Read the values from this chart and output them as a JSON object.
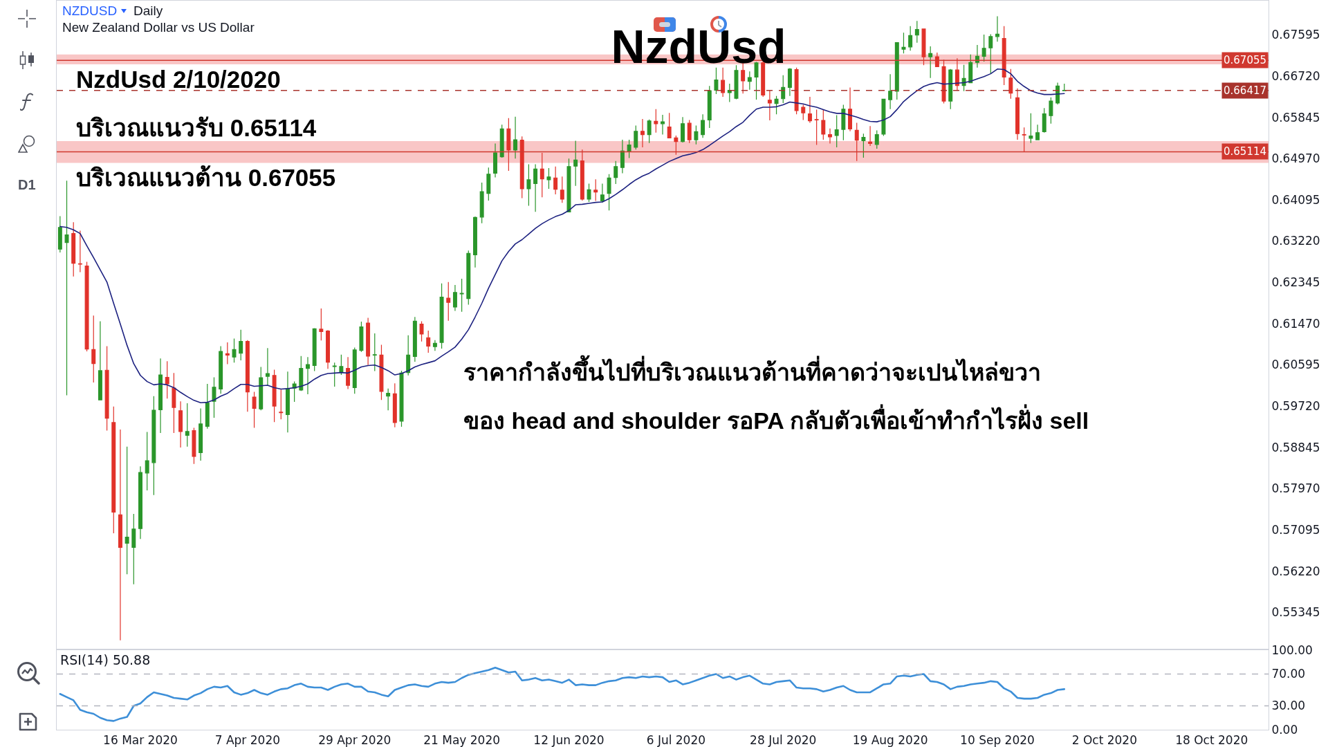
{
  "chart_data": [
    {
      "type": "candlestick",
      "title": "NzdUsd",
      "annotations": [
        "NZDUSD",
        "Daily",
        "New Zealand Dollar vs US Dollar",
        "NzdUsd 2/10/2020",
        "บริเวณแนวรับ 0.65114",
        "บริเวณแนวต้าน 0.67055",
        "ราคากำลังขึ้นไปที่บริเวณแนวต้านที่คาดว่าจะเปนไหล่ขวา",
        "ของ head and shoulder รอPA กลับตัวเพื่อเข้าทำกำไรฝั่ง sell",
        "D1"
      ],
      "categories": [
        null,
        null,
        null,
        null,
        null,
        null,
        null,
        null,
        null,
        null,
        null,
        null,
        null,
        null,
        null,
        null,
        null,
        null,
        null,
        null,
        null,
        null,
        null,
        null,
        null,
        null,
        null,
        null,
        null,
        null,
        null,
        null,
        null,
        null,
        null,
        null,
        null,
        null,
        null,
        null,
        null,
        null,
        null,
        null,
        null,
        null,
        null,
        null,
        null,
        null,
        null,
        null,
        null,
        null,
        null,
        null,
        null,
        null,
        null,
        null,
        null,
        null,
        null,
        null,
        null,
        null,
        null,
        null,
        null,
        null,
        null,
        null,
        null,
        null,
        null,
        null,
        null,
        null,
        null,
        null,
        null,
        null,
        null,
        null,
        null,
        null,
        null,
        null,
        null,
        null,
        null,
        null,
        null,
        null,
        null,
        null,
        null,
        null,
        null,
        null,
        null,
        null,
        null,
        null,
        null,
        null,
        null,
        null,
        null,
        null,
        null,
        null,
        null,
        null,
        null,
        null,
        null,
        null,
        null,
        null,
        null,
        null,
        null,
        null,
        null,
        null,
        null,
        null,
        null,
        null,
        null,
        null,
        null,
        null,
        null,
        null,
        null,
        null,
        null,
        null,
        null,
        null,
        null,
        null,
        null,
        null,
        null,
        null,
        null,
        null,
        null,
        null,
        null,
        null,
        null,
        null,
        null,
        null,
        null,
        null,
        null,
        null,
        null,
        null,
        null,
        null,
        null,
        null,
        null,
        null,
        null,
        null,
        null,
        null,
        null,
        null,
        null,
        null,
        null,
        null,
        null
      ],
      "ohlc": [
        [
          0.6305,
          0.6375,
          0.6298,
          0.6351
        ],
        [
          0.6319,
          0.645,
          0.5995,
          0.6335
        ],
        [
          0.6338,
          0.6362,
          0.6247,
          0.6275
        ],
        [
          0.6274,
          0.6344,
          0.6256,
          0.6273
        ],
        [
          0.6269,
          0.6278,
          0.6088,
          0.6093
        ],
        [
          0.6092,
          0.6164,
          0.6022,
          0.6062
        ],
        [
          0.5985,
          0.6152,
          0.5984,
          0.6047
        ],
        [
          0.6048,
          0.6099,
          0.592,
          0.5946
        ],
        [
          0.5937,
          0.5971,
          0.5702,
          0.5747
        ],
        [
          0.5741,
          0.5922,
          0.5475,
          0.5672
        ],
        [
          0.5681,
          0.5886,
          0.5615,
          0.5694
        ],
        [
          0.5672,
          0.5743,
          0.5594,
          0.5711
        ],
        [
          0.5712,
          0.5844,
          0.569,
          0.5831
        ],
        [
          0.583,
          0.5917,
          0.5793,
          0.5856
        ],
        [
          0.5852,
          0.5993,
          0.5783,
          0.5963
        ],
        [
          0.5964,
          0.6073,
          0.5915,
          0.6038
        ],
        [
          0.6033,
          0.6067,
          0.5988,
          0.6019
        ],
        [
          0.601,
          0.6042,
          0.5915,
          0.5969
        ],
        [
          0.5962,
          0.5982,
          0.5884,
          0.5918
        ],
        [
          0.591,
          0.5978,
          0.5886,
          0.5918
        ],
        [
          0.592,
          0.5926,
          0.5849,
          0.5865
        ],
        [
          0.5873,
          0.5967,
          0.5856,
          0.5934
        ],
        [
          0.5929,
          0.6019,
          0.5924,
          0.5979
        ],
        [
          0.5982,
          0.6033,
          0.5947,
          0.6012
        ],
        [
          0.6008,
          0.6099,
          0.5998,
          0.6088
        ],
        [
          0.6083,
          0.6107,
          0.6061,
          0.608
        ],
        [
          0.6076,
          0.6115,
          0.6064,
          0.6092
        ],
        [
          0.6084,
          0.6134,
          0.6069,
          0.6109
        ],
        [
          0.6109,
          0.6112,
          0.596,
          0.6002
        ],
        [
          0.5991,
          0.6002,
          0.5926,
          0.5967
        ],
        [
          0.5966,
          0.6055,
          0.5963,
          0.6032
        ],
        [
          0.6035,
          0.6095,
          0.6016,
          0.6041
        ],
        [
          0.6037,
          0.6049,
          0.5938,
          0.5972
        ],
        [
          0.5959,
          0.6007,
          0.5944,
          0.5958
        ],
        [
          0.5954,
          0.6045,
          0.5916,
          0.6009
        ],
        [
          0.601,
          0.6024,
          0.5981,
          0.6019
        ],
        [
          0.6006,
          0.6078,
          0.6004,
          0.6052
        ],
        [
          0.6052,
          0.6076,
          0.5997,
          0.606
        ],
        [
          0.6058,
          0.6137,
          0.6046,
          0.6136
        ],
        [
          0.6135,
          0.6179,
          0.6111,
          0.613
        ],
        [
          0.6131,
          0.6133,
          0.6051,
          0.6065
        ],
        [
          0.6056,
          0.6064,
          0.6013,
          0.6057
        ],
        [
          0.6045,
          0.6081,
          0.6038,
          0.6056
        ],
        [
          0.6052,
          0.6076,
          0.6008,
          0.6016
        ],
        [
          0.6011,
          0.6096,
          0.5998,
          0.6091
        ],
        [
          0.609,
          0.6151,
          0.6087,
          0.614
        ],
        [
          0.6148,
          0.6159,
          0.6059,
          0.6078
        ],
        [
          0.608,
          0.6126,
          0.6046,
          0.6081
        ],
        [
          0.608,
          0.6102,
          0.5985,
          0.6003
        ],
        [
          0.5993,
          0.6009,
          0.5963,
          0.5999
        ],
        [
          0.5998,
          0.602,
          0.5927,
          0.5937
        ],
        [
          0.594,
          0.6047,
          0.5928,
          0.6042
        ],
        [
          0.6043,
          0.6122,
          0.6037,
          0.608
        ],
        [
          0.6077,
          0.6161,
          0.6066,
          0.6152
        ],
        [
          0.6146,
          0.6152,
          0.6109,
          0.6125
        ],
        [
          0.6117,
          0.6132,
          0.6085,
          0.6099
        ],
        [
          0.6098,
          0.6112,
          0.6089,
          0.6105
        ],
        [
          0.6107,
          0.6232,
          0.6094,
          0.6203
        ],
        [
          0.6201,
          0.6235,
          0.6153,
          0.6192
        ],
        [
          0.6182,
          0.6229,
          0.6174,
          0.6213
        ],
        [
          0.621,
          0.6242,
          0.6172,
          0.6211
        ],
        [
          0.62,
          0.6302,
          0.6187,
          0.6296
        ],
        [
          0.6293,
          0.6374,
          0.6266,
          0.6372
        ],
        [
          0.6373,
          0.6446,
          0.636,
          0.6427
        ],
        [
          0.6423,
          0.6478,
          0.6408,
          0.6464
        ],
        [
          0.6466,
          0.6529,
          0.6457,
          0.6509
        ],
        [
          0.6501,
          0.6569,
          0.6499,
          0.656
        ],
        [
          0.656,
          0.6583,
          0.6471,
          0.6515
        ],
        [
          0.6515,
          0.6586,
          0.6497,
          0.6537
        ],
        [
          0.6536,
          0.6544,
          0.6413,
          0.6433
        ],
        [
          0.6433,
          0.6485,
          0.6397,
          0.6452
        ],
        [
          0.6444,
          0.6485,
          0.6384,
          0.6475
        ],
        [
          0.6475,
          0.6509,
          0.6415,
          0.6454
        ],
        [
          0.6452,
          0.6477,
          0.6433,
          0.6458
        ],
        [
          0.6456,
          0.648,
          0.6421,
          0.6432
        ],
        [
          0.643,
          0.6459,
          0.6403,
          0.6411
        ],
        [
          0.6384,
          0.6497,
          0.6383,
          0.648
        ],
        [
          0.6481,
          0.6535,
          0.6439,
          0.6494
        ],
        [
          0.6492,
          0.6516,
          0.6408,
          0.6411
        ],
        [
          0.6411,
          0.6444,
          0.6405,
          0.6431
        ],
        [
          0.643,
          0.6453,
          0.6407,
          0.6426
        ],
        [
          0.6407,
          0.6444,
          0.6404,
          0.642
        ],
        [
          0.6423,
          0.6464,
          0.6387,
          0.6456
        ],
        [
          0.6457,
          0.6492,
          0.6443,
          0.648
        ],
        [
          0.6478,
          0.6537,
          0.6466,
          0.6513
        ],
        [
          0.6513,
          0.6537,
          0.6498,
          0.6526
        ],
        [
          0.6521,
          0.6567,
          0.6516,
          0.6555
        ],
        [
          0.6555,
          0.6581,
          0.6521,
          0.6548
        ],
        [
          0.6548,
          0.658,
          0.653,
          0.6577
        ],
        [
          0.6576,
          0.6602,
          0.6552,
          0.6571
        ],
        [
          0.6571,
          0.659,
          0.6548,
          0.6575
        ],
        [
          0.6564,
          0.6594,
          0.654,
          0.6541
        ],
        [
          0.6541,
          0.6546,
          0.6505,
          0.6533
        ],
        [
          0.6533,
          0.6585,
          0.6531,
          0.6571
        ],
        [
          0.6572,
          0.6579,
          0.653,
          0.6537
        ],
        [
          0.6537,
          0.6567,
          0.6527,
          0.6554
        ],
        [
          0.6548,
          0.6591,
          0.6541,
          0.6578
        ],
        [
          0.6579,
          0.6651,
          0.6562,
          0.6641
        ],
        [
          0.6642,
          0.669,
          0.6634,
          0.6664
        ],
        [
          0.6663,
          0.669,
          0.6628,
          0.6637
        ],
        [
          0.6637,
          0.6656,
          0.6617,
          0.6642
        ],
        [
          0.6625,
          0.6695,
          0.6623,
          0.6684
        ],
        [
          0.6684,
          0.67,
          0.6635,
          0.6662
        ],
        [
          0.6661,
          0.6682,
          0.6643,
          0.6669
        ],
        [
          0.667,
          0.6702,
          0.6622,
          0.67
        ],
        [
          0.67,
          0.6704,
          0.6628,
          0.6632
        ],
        [
          0.6621,
          0.6642,
          0.6578,
          0.6615
        ],
        [
          0.6614,
          0.663,
          0.6591,
          0.6623
        ],
        [
          0.6624,
          0.6674,
          0.6615,
          0.6648
        ],
        [
          0.6648,
          0.6689,
          0.663,
          0.6687
        ],
        [
          0.6686,
          0.669,
          0.6591,
          0.6599
        ],
        [
          0.6606,
          0.6611,
          0.6579,
          0.6594
        ],
        [
          0.6592,
          0.6628,
          0.6573,
          0.6577
        ],
        [
          0.658,
          0.6601,
          0.6526,
          0.6579
        ],
        [
          0.6578,
          0.6601,
          0.6537,
          0.6549
        ],
        [
          0.6548,
          0.6561,
          0.6529,
          0.6543
        ],
        [
          0.6546,
          0.6589,
          0.6521,
          0.6558
        ],
        [
          0.6559,
          0.6611,
          0.6536,
          0.6602
        ],
        [
          0.6602,
          0.6648,
          0.6555,
          0.656
        ],
        [
          0.6557,
          0.6573,
          0.6492,
          0.6536
        ],
        [
          0.6535,
          0.655,
          0.6499,
          0.6542
        ],
        [
          0.6532,
          0.6566,
          0.6524,
          0.6529
        ],
        [
          0.6527,
          0.6557,
          0.6518,
          0.6548
        ],
        [
          0.6549,
          0.6624,
          0.6545,
          0.6623
        ],
        [
          0.6622,
          0.6676,
          0.6602,
          0.664
        ],
        [
          0.664,
          0.6744,
          0.6622,
          0.6743
        ],
        [
          0.6729,
          0.6764,
          0.672,
          0.6733
        ],
        [
          0.6734,
          0.6778,
          0.6726,
          0.6758
        ],
        [
          0.6759,
          0.6789,
          0.6743,
          0.6771
        ],
        [
          0.6772,
          0.6773,
          0.6695,
          0.6713
        ],
        [
          0.6713,
          0.6735,
          0.6668,
          0.672
        ],
        [
          0.6713,
          0.6722,
          0.6691,
          0.6692
        ],
        [
          0.6692,
          0.6707,
          0.6614,
          0.6619
        ],
        [
          0.6619,
          0.6687,
          0.6602,
          0.6685
        ],
        [
          0.6685,
          0.671,
          0.6641,
          0.6652
        ],
        [
          0.6652,
          0.6696,
          0.664,
          0.6667
        ],
        [
          0.6658,
          0.6718,
          0.6657,
          0.6701
        ],
        [
          0.6701,
          0.6738,
          0.669,
          0.6714
        ],
        [
          0.6714,
          0.676,
          0.6703,
          0.6731
        ],
        [
          0.6732,
          0.6761,
          0.6678,
          0.6756
        ],
        [
          0.6756,
          0.6799,
          0.6745,
          0.6761
        ],
        [
          0.6752,
          0.6778,
          0.6653,
          0.667
        ],
        [
          0.6668,
          0.6687,
          0.6624,
          0.6636
        ],
        [
          0.6626,
          0.6646,
          0.6537,
          0.655
        ],
        [
          0.6548,
          0.6563,
          0.6512,
          0.6547
        ],
        [
          0.654,
          0.6593,
          0.653,
          0.6545
        ],
        [
          0.6537,
          0.6569,
          0.6536,
          0.6552
        ],
        [
          0.6554,
          0.6604,
          0.6552,
          0.6592
        ],
        [
          0.6588,
          0.6627,
          0.6571,
          0.6619
        ],
        [
          0.6615,
          0.6658,
          0.6612,
          0.6651
        ],
        [
          0.6641,
          0.6656,
          0.664,
          0.6642
        ],
        null,
        null,
        null,
        null,
        null,
        null,
        null,
        null,
        null,
        null,
        null,
        null,
        null,
        null,
        null,
        null,
        null,
        null,
        null,
        null,
        null,
        null,
        null,
        null,
        null,
        null,
        null,
        null,
        null,
        null
      ],
      "colors": [
        "#2a962a",
        "#2a962a",
        "#e1322a",
        "#e1322a",
        "#e1322a",
        "#e1322a",
        "#2a962a",
        "#e1322a",
        "#e1322a",
        "#e1322a",
        "#2a962a",
        "#2a962a",
        "#2a962a",
        "#2a962a",
        "#2a962a",
        "#2a962a",
        "#e1322a",
        "#e1322a",
        "#e1322a",
        "#2a962a",
        "#e1322a",
        "#2a962a",
        "#2a962a",
        "#2a962a",
        "#2a962a",
        "#e1322a",
        "#2a962a",
        "#2a962a",
        "#e1322a",
        "#e1322a",
        "#2a962a",
        "#2a962a",
        "#e1322a",
        "#e1322a",
        "#2a962a",
        "#2a962a",
        "#2a962a",
        "#2a962a",
        "#2a962a",
        "#e1322a",
        "#e1322a",
        "#2a962a",
        "#2a962a",
        "#e1322a",
        "#2a962a",
        "#2a962a",
        "#e1322a",
        "#2a962a",
        "#e1322a",
        "#2a962a",
        "#e1322a",
        "#2a962a",
        "#2a962a",
        "#2a962a",
        "#e1322a",
        "#e1322a",
        "#2a962a",
        "#2a962a",
        "#e1322a",
        "#2a962a",
        "#2a962a",
        "#2a962a",
        "#2a962a",
        "#2a962a",
        "#2a962a",
        "#2a962a",
        "#2a962a",
        "#e1322a",
        "#2a962a",
        "#e1322a",
        "#2a962a",
        "#2a962a",
        "#e1322a",
        "#2a962a",
        "#e1322a",
        "#e1322a",
        "#2a962a",
        "#2a962a",
        "#e1322a",
        "#2a962a",
        "#e1322a",
        "#2a962a",
        "#2a962a",
        "#2a962a",
        "#2a962a",
        "#2a962a",
        "#2a962a",
        "#e1322a",
        "#2a962a",
        "#e1322a",
        "#2a962a",
        "#e1322a",
        "#e1322a",
        "#2a962a",
        "#e1322a",
        "#2a962a",
        "#2a962a",
        "#2a962a",
        "#2a962a",
        "#e1322a",
        "#2a962a",
        "#2a962a",
        "#e1322a",
        "#2a962a",
        "#2a962a",
        "#e1322a",
        "#e1322a",
        "#2a962a",
        "#2a962a",
        "#2a962a",
        "#e1322a",
        "#e1322a",
        "#e1322a",
        "#e1322a",
        "#e1322a",
        "#e1322a",
        "#2a962a",
        "#2a962a",
        "#e1322a",
        "#e1322a",
        "#2a962a",
        "#e1322a",
        "#2a962a",
        "#2a962a",
        "#2a962a",
        "#2a962a",
        "#2a962a",
        "#2a962a",
        "#2a962a",
        "#e1322a",
        "#2a962a",
        "#e1322a",
        "#e1322a",
        "#2a962a",
        "#e1322a",
        "#2a962a",
        "#2a962a",
        "#2a962a",
        "#2a962a",
        "#2a962a",
        "#2a962a",
        "#e1322a",
        "#e1322a",
        "#e1322a",
        "#e1322a",
        "#2a962a",
        "#2a962a",
        "#2a962a",
        "#2a962a",
        "#2a962a",
        "#2a962a",
        null,
        null,
        null,
        null,
        null,
        null,
        null,
        null,
        null,
        null,
        null,
        null,
        null,
        null,
        null,
        null,
        null,
        null,
        null,
        null,
        null,
        null,
        null,
        null,
        null,
        null,
        null,
        null,
        null,
        null
      ],
      "series": [
        {
          "type": "line",
          "color": "#1c2180",
          "values": [
            0.6353,
            0.6351,
            0.6346,
            0.6338,
            0.6312,
            0.6287,
            0.6261,
            0.6235,
            0.619,
            0.6146,
            0.6101,
            0.6062,
            0.6037,
            0.6024,
            0.6017,
            0.6019,
            0.6017,
            0.6011,
            0.6001,
            0.5992,
            0.5984,
            0.5979,
            0.598,
            0.5985,
            0.5993,
            0.5999,
            0.6009,
            0.6018,
            0.6018,
            0.6014,
            0.6015,
            0.6016,
            0.6011,
            0.6008,
            0.6009,
            0.6011,
            0.6014,
            0.6019,
            0.6029,
            0.6037,
            0.6041,
            0.6042,
            0.6043,
            0.6042,
            0.6048,
            0.6055,
            0.6058,
            0.6059,
            0.6054,
            0.6047,
            0.6038,
            0.6041,
            0.6047,
            0.6055,
            0.606,
            0.6064,
            0.6068,
            0.6078,
            0.6087,
            0.6097,
            0.6114,
            0.6134,
            0.6161,
            0.619,
            0.6222,
            0.6251,
            0.628,
            0.63,
            0.6316,
            0.6325,
            0.6337,
            0.6349,
            0.6359,
            0.6367,
            0.6374,
            0.6379,
            0.6387,
            0.6399,
            0.64,
            0.6402,
            0.6404,
            0.6405,
            0.6412,
            0.6421,
            0.6431,
            0.6442,
            0.6452,
            0.646,
            0.6466,
            0.6475,
            0.6483,
            0.6491,
            0.6497,
            0.6503,
            0.6506,
            0.651,
            0.6516,
            0.6525,
            0.6535,
            0.6545,
            0.6554,
            0.6565,
            0.6574,
            0.6589,
            0.6602,
            0.6606,
            0.6606,
            0.6607,
            0.6611,
            0.6617,
            0.6615,
            0.6613,
            0.6609,
            0.6606,
            0.6601,
            0.6596,
            0.6593,
            0.6593,
            0.6589,
            0.6585,
            0.658,
            0.6576,
            0.6575,
            0.6579,
            0.6586,
            0.6601,
            0.6618,
            0.663,
            0.6641,
            0.665,
            0.6655,
            0.6658,
            0.6655,
            0.6656,
            0.6657,
            0.6658,
            0.6661,
            0.6666,
            0.6671,
            0.6677,
            0.6687,
            0.6686,
            0.6677,
            0.6661,
            0.665,
            0.6641,
            0.6636,
            0.6633,
            0.6633,
            0.6634,
            0.6635,
            null,
            null,
            null,
            null,
            null,
            null,
            null,
            null,
            null,
            null,
            null,
            null,
            null,
            null,
            null,
            null,
            null,
            null,
            null,
            null,
            null,
            null,
            null,
            null,
            null,
            null,
            null,
            null,
            null,
            null
          ]
        }
      ],
      "ylim": [
        0.5457,
        0.6832
      ],
      "yticks": [
        0.55345,
        {
          "value": 0.5622,
          "label": "0.56220"
        },
        0.57095,
        {
          "value": 0.5797,
          "label": "0.57970"
        },
        0.58845,
        {
          "value": 0.5972,
          "label": "0.59720"
        },
        0.60595,
        {
          "value": 0.6147,
          "label": "0.61470"
        },
        0.62345,
        {
          "value": 0.6322,
          "label": "0.63220"
        },
        0.64095,
        {
          "value": 0.6497,
          "label": "0.64970"
        },
        0.65845,
        {
          "value": 0.6672,
          "label": "0.66720"
        },
        0.67595
      ],
      "bands": [
        {
          "axis": "y",
          "from": 0.6697,
          "to": 0.6718,
          "color": "#f9c6c6"
        },
        {
          "axis": "y",
          "from": 0.6488,
          "to": 0.6534,
          "color": "#f9c6c6"
        }
      ],
      "ref_lines": [
        {
          "axis": "y",
          "value": 0.67055,
          "label": "0.67055",
          "color": "#d0382f"
        },
        {
          "axis": "y",
          "value": 0.66417,
          "label": "0.66417",
          "color": "#a8332c",
          "line_style": "dashed"
        },
        {
          "axis": "y",
          "value": 0.65114,
          "label": "0.65114",
          "color": "#d0382f"
        }
      ]
    },
    {
      "type": "line",
      "title": "RSI(14) 50.88",
      "categories": [
        null,
        null,
        null,
        null,
        null,
        null,
        null,
        null,
        null,
        null,
        null,
        null,
        "16 Mar 2020",
        null,
        null,
        null,
        null,
        null,
        null,
        null,
        null,
        null,
        null,
        null,
        null,
        null,
        null,
        null,
        "7 Apr 2020",
        null,
        null,
        null,
        null,
        null,
        null,
        null,
        null,
        null,
        null,
        null,
        null,
        null,
        null,
        null,
        "29 Apr 2020",
        null,
        null,
        null,
        null,
        null,
        null,
        null,
        null,
        null,
        null,
        null,
        null,
        null,
        null,
        null,
        "21 May 2020",
        null,
        null,
        null,
        null,
        null,
        null,
        null,
        null,
        null,
        null,
        null,
        null,
        null,
        null,
        null,
        "12 Jun 2020",
        null,
        null,
        null,
        null,
        null,
        null,
        null,
        null,
        null,
        null,
        null,
        null,
        null,
        null,
        null,
        "6 Jul 2020",
        null,
        null,
        null,
        null,
        null,
        null,
        null,
        null,
        null,
        null,
        null,
        null,
        null,
        null,
        null,
        "28 Jul 2020",
        null,
        null,
        null,
        null,
        null,
        null,
        null,
        null,
        null,
        null,
        null,
        null,
        null,
        null,
        null,
        "19 Aug 2020",
        null,
        null,
        null,
        null,
        null,
        null,
        null,
        null,
        null,
        null,
        null,
        null,
        null,
        null,
        null,
        "10 Sep 2020",
        null,
        null,
        null,
        null,
        null,
        null,
        null,
        null,
        null,
        null,
        null,
        null,
        null,
        null,
        null,
        "2 Oct 2020",
        null,
        null,
        null,
        null,
        null,
        null,
        null,
        null,
        null,
        null,
        null,
        null,
        null,
        null,
        null,
        "18 Oct 2020",
        null,
        null,
        null,
        null,
        null,
        null,
        null,
        null
      ],
      "values": [
        45,
        41,
        37,
        25,
        22,
        20,
        15,
        12,
        11,
        14,
        16,
        30,
        33,
        41,
        47,
        45,
        43,
        40,
        39,
        38,
        43,
        46,
        51,
        54,
        53,
        55,
        47,
        44,
        46,
        50,
        46,
        44,
        48,
        51,
        52,
        56,
        58,
        54,
        53,
        53,
        50,
        54,
        57,
        58,
        54,
        54,
        48,
        47,
        44,
        42,
        50,
        53,
        56,
        57,
        55,
        54,
        58,
        60,
        59,
        60,
        65,
        69,
        71,
        73,
        75,
        78,
        75,
        72,
        73,
        62,
        63,
        65,
        62,
        63,
        61,
        59,
        63,
        56,
        57,
        56,
        56,
        59,
        61,
        62,
        65,
        66,
        65,
        67,
        66,
        67,
        66,
        60,
        62,
        57,
        59,
        62,
        65,
        68,
        70,
        65,
        67,
        63,
        66,
        68,
        63,
        58,
        57,
        60,
        61,
        62,
        53,
        52,
        52,
        51,
        48,
        50,
        53,
        55,
        50,
        47,
        47,
        47,
        52,
        57,
        58,
        67,
        68,
        67,
        69,
        70,
        61,
        60,
        57,
        51,
        54,
        55,
        57,
        58,
        59,
        61,
        60,
        52,
        48,
        40,
        39,
        39,
        40,
        44,
        46,
        50,
        51,
        null,
        null,
        null,
        null,
        null,
        null,
        null,
        null,
        null,
        null,
        null,
        null,
        null,
        null,
        null,
        null,
        null,
        null,
        null,
        null,
        null,
        null,
        null,
        null,
        null,
        null,
        null,
        null,
        null,
        null
      ],
      "color": "#3d8fd8",
      "ylim": [
        0,
        100
      ],
      "yticks": [
        {
          "value": 0,
          "label": "0.00"
        },
        {
          "value": 30,
          "label": "30.00"
        },
        {
          "value": 70,
          "label": "70.00"
        },
        {
          "value": 100,
          "label": "100.00"
        }
      ],
      "ref_lines": [
        {
          "axis": "y",
          "value": 70,
          "color": "#b2b5be",
          "line_style": "dashed"
        },
        {
          "axis": "y",
          "value": 30,
          "color": "#b2b5be",
          "line_style": "dashed"
        }
      ]
    }
  ]
}
